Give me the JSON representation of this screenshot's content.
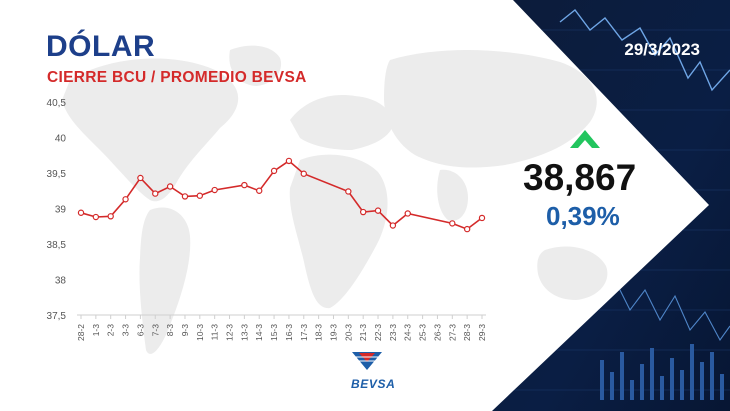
{
  "header": {
    "title": "DÓLAR",
    "subtitle": "CIERRE BCU / PROMEDIO BEVSA",
    "date": "29/3/2023"
  },
  "summary": {
    "value": "38,867",
    "change": "0,39%",
    "direction": "up",
    "direction_icon": "up-arrow-icon",
    "up_color": "#22c55e"
  },
  "brand": {
    "name": "BEVSA",
    "colors": {
      "blue": "#1d5ea8",
      "red": "#d42a2a",
      "title_blue": "#1d3f8a",
      "panel": "#0c1c3a"
    }
  },
  "chart_data": {
    "type": "line",
    "categories": [
      "28-2",
      "1-3",
      "2-3",
      "3-3",
      "6-3",
      "7-3",
      "8-3",
      "9-3",
      "10-3",
      "11-3",
      "12-3",
      "13-3",
      "14-3",
      "15-3",
      "16-3",
      "17-3",
      "18-3",
      "19-3",
      "20-3",
      "21-3",
      "22-3",
      "23-3",
      "24-3",
      "25-3",
      "26-3",
      "27-3",
      "28-3",
      "29-3"
    ],
    "series": [
      {
        "values": [
          38.94,
          38.88,
          38.89,
          39.13,
          39.43,
          39.21,
          39.31,
          39.17,
          39.18,
          39.26,
          null,
          39.33,
          39.25,
          39.53,
          39.67,
          39.49,
          null,
          null,
          39.24,
          38.95,
          38.97,
          38.76,
          38.93,
          null,
          null,
          38.79,
          38.71,
          38.867
        ],
        "color": "#d42a2a"
      }
    ],
    "ylim": [
      37.5,
      40.5
    ],
    "yticks": [
      "37,5",
      "38",
      "38,5",
      "39",
      "39,5",
      "40",
      "40,5"
    ],
    "ytick_values": [
      37.5,
      38,
      38.5,
      39,
      39.5,
      40,
      40.5
    ],
    "grid": false,
    "legend": "none"
  }
}
